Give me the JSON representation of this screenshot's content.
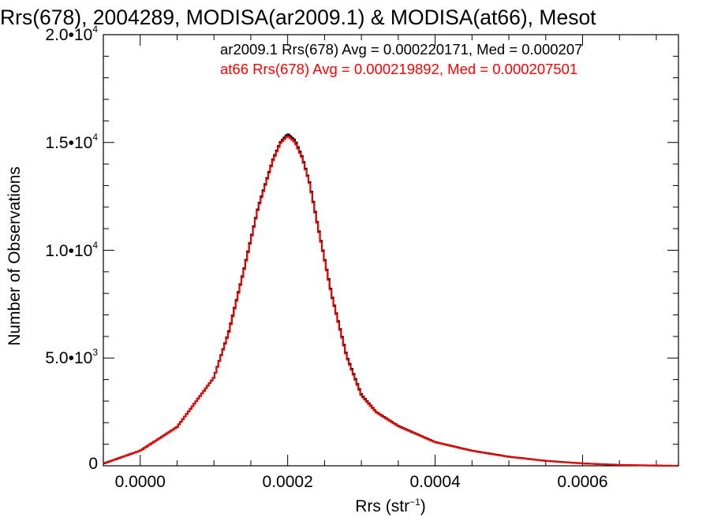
{
  "chart_data": {
    "type": "line",
    "title": "Rrs(678), 2004289, MODISA(ar2009.1) & MODISA(at66), Mesot",
    "xlabel_base": "Rrs (str",
    "xlabel_sup": "−1",
    "xlabel_end": ")",
    "ylabel": "Number of Observations",
    "xlim": [
      -5e-05,
      0.00073
    ],
    "ylim": [
      0,
      20000
    ],
    "x_ticks": [
      {
        "value": 0.0,
        "label": "0.0000"
      },
      {
        "value": 0.0002,
        "label": "0.0002"
      },
      {
        "value": 0.0004,
        "label": "0.0004"
      },
      {
        "value": 0.0006,
        "label": "0.0006"
      }
    ],
    "y_ticks": [
      {
        "value": 0,
        "label_base": "0",
        "label_sup": ""
      },
      {
        "value": 5000,
        "label_base": "5.0•10",
        "label_sup": "3"
      },
      {
        "value": 10000,
        "label_base": "1.0•10",
        "label_sup": "4"
      },
      {
        "value": 15000,
        "label_base": "1.5•10",
        "label_sup": "4"
      },
      {
        "value": 20000,
        "label_base": "2.0•10",
        "label_sup": "4"
      }
    ],
    "legend": [
      {
        "text": "ar2009.1 Rrs(678) Avg = 0.000220171, Med = 0.000207",
        "color": "#000000"
      },
      {
        "text": "at66 Rrs(678) Avg = 0.000219892, Med = 0.000207501",
        "color": "#ff0000"
      }
    ],
    "series": [
      {
        "name": "ar2009.1",
        "color": "#000000",
        "x": [
          -5e-05,
          0.0,
          5e-05,
          0.0001,
          0.00012,
          0.00014,
          0.00016,
          0.00018,
          0.00019,
          0.0002,
          0.00021,
          0.00022,
          0.00023,
          0.00024,
          0.00026,
          0.00028,
          0.0003,
          0.00032,
          0.00035,
          0.0004,
          0.00045,
          0.0005,
          0.00055,
          0.0006,
          0.00065,
          0.0007,
          0.00073
        ],
        "y": [
          100,
          700,
          1800,
          4100,
          6200,
          9000,
          12000,
          14200,
          15000,
          15400,
          15100,
          14300,
          13100,
          11300,
          7900,
          5100,
          3300,
          2500,
          1850,
          1100,
          700,
          420,
          230,
          110,
          40,
          10,
          0
        ]
      },
      {
        "name": "at66",
        "color": "#ff0000",
        "x": [
          -5e-05,
          0.0,
          5e-05,
          0.0001,
          0.00012,
          0.00014,
          0.00016,
          0.00018,
          0.00019,
          0.0002,
          0.00021,
          0.00022,
          0.00023,
          0.00024,
          0.00026,
          0.00028,
          0.0003,
          0.00032,
          0.00035,
          0.0004,
          0.00045,
          0.0005,
          0.00055,
          0.0006,
          0.00065,
          0.0007,
          0.00073
        ],
        "y": [
          100,
          700,
          1800,
          4100,
          6150,
          8950,
          11950,
          14150,
          14950,
          15300,
          15000,
          14250,
          13050,
          11250,
          7850,
          5050,
          3250,
          2480,
          1830,
          1090,
          690,
          410,
          225,
          105,
          38,
          9,
          0
        ]
      }
    ]
  }
}
